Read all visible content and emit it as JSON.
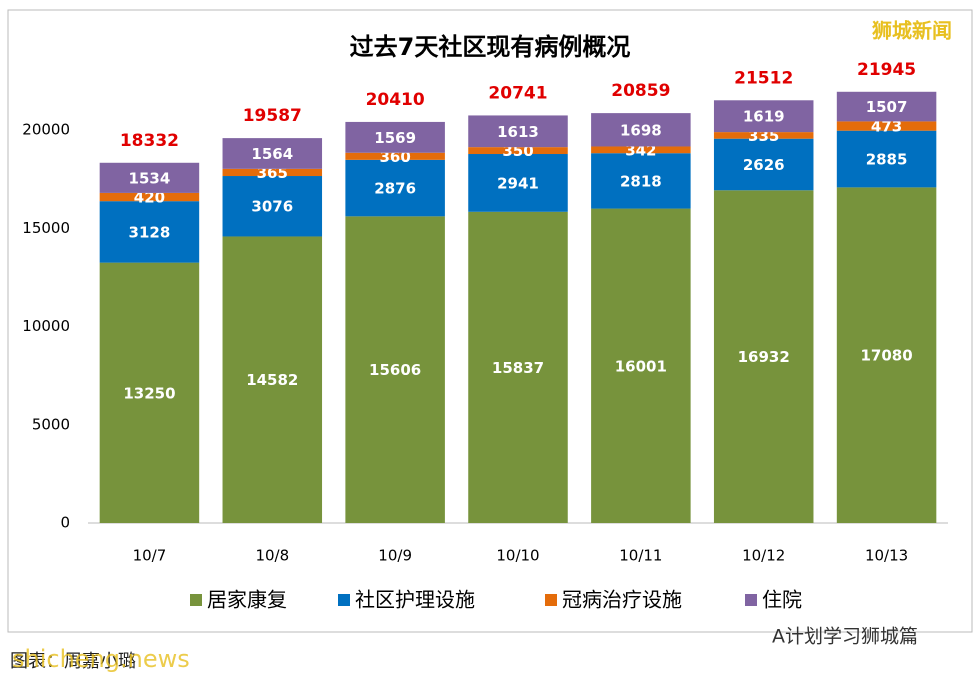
{
  "chart_data": {
    "type": "stacked_bar",
    "title": "过去7天社区现有病例概况",
    "categories": [
      "10/7",
      "10/8",
      "10/9",
      "10/10",
      "10/11",
      "10/12",
      "10/13"
    ],
    "series": [
      {
        "name": "居家康复",
        "color": "#77933c",
        "values": [
          13250,
          14582,
          15606,
          15837,
          16001,
          16932,
          17080
        ]
      },
      {
        "name": "社区护理设施",
        "color": "#0070c0",
        "values": [
          3128,
          3076,
          2876,
          2941,
          2818,
          2626,
          2885
        ]
      },
      {
        "name": "冠病治疗设施",
        "color": "#e46c0a",
        "values": [
          420,
          365,
          360,
          350,
          342,
          335,
          473
        ]
      },
      {
        "name": "住院",
        "color": "#8064a2",
        "values": [
          1534,
          1564,
          1569,
          1613,
          1698,
          1619,
          1507
        ]
      }
    ],
    "totals": [
      18332,
      19587,
      20410,
      20741,
      20859,
      21512,
      21945
    ],
    "ylim": [
      0,
      20000
    ],
    "yticks": [
      0,
      5000,
      10000,
      15000,
      20000
    ],
    "grid": false,
    "legend": "bottom"
  },
  "watermarks": {
    "brand": "狮城新闻",
    "account": "A计划学习狮城篇",
    "site": "shicheng.news",
    "source": "图表：周嘉小璐"
  }
}
